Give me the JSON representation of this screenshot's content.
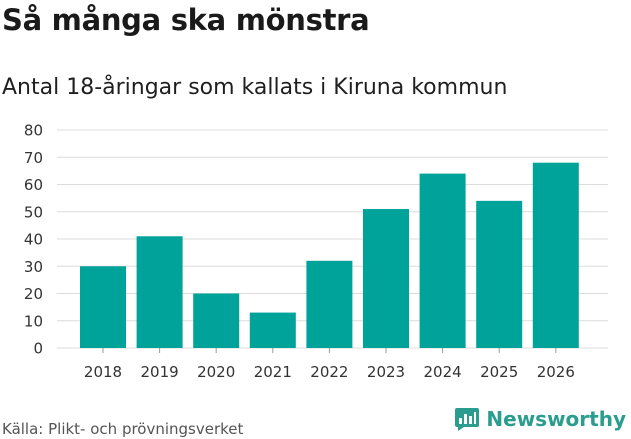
{
  "header": {
    "title": "Så många ska mönstra",
    "subtitle": "Antal 18-åringar som kallats i Kiruna kommun"
  },
  "footer": {
    "source": "Källa: Plikt- och prövningsverket",
    "brand": "Newsworthy"
  },
  "colors": {
    "bar": "#00a399",
    "grid": "#dcdcdc",
    "brand": "#2a9d8f"
  },
  "chart_data": {
    "type": "bar",
    "title": "Så många ska mönstra",
    "subtitle": "Antal 18-åringar som kallats i Kiruna kommun",
    "categories": [
      "2018",
      "2019",
      "2020",
      "2021",
      "2022",
      "2023",
      "2024",
      "2025",
      "2026"
    ],
    "values": [
      30,
      41,
      20,
      13,
      32,
      51,
      64,
      54,
      68
    ],
    "ylim": [
      0,
      80
    ],
    "yticks": [
      0,
      10,
      20,
      30,
      40,
      50,
      60,
      70,
      80
    ],
    "grid": true,
    "xlabel": "",
    "ylabel": ""
  }
}
